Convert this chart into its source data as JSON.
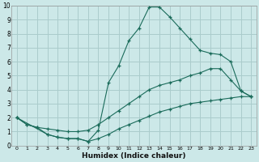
{
  "xlabel": "Humidex (Indice chaleur)",
  "bg_color": "#cce8e8",
  "grid_color": "#aacccc",
  "line_color": "#1a6b5a",
  "xlim": [
    -0.5,
    23.5
  ],
  "ylim": [
    0,
    10
  ],
  "xticks": [
    0,
    1,
    2,
    3,
    4,
    5,
    6,
    7,
    8,
    9,
    10,
    11,
    12,
    13,
    14,
    15,
    16,
    17,
    18,
    19,
    20,
    21,
    22,
    23
  ],
  "yticks": [
    0,
    1,
    2,
    3,
    4,
    5,
    6,
    7,
    8,
    9,
    10
  ],
  "line1_x": [
    0,
    1,
    2,
    3,
    4,
    5,
    6,
    7,
    8,
    9,
    10,
    11,
    12,
    13,
    14,
    15,
    16,
    17,
    18,
    19,
    20,
    21,
    22,
    23
  ],
  "line1_y": [
    2.0,
    1.5,
    1.3,
    0.8,
    0.6,
    0.5,
    0.5,
    0.3,
    0.5,
    0.8,
    1.2,
    1.5,
    1.8,
    2.1,
    2.4,
    2.6,
    2.8,
    3.0,
    3.1,
    3.2,
    3.3,
    3.4,
    3.5,
    3.5
  ],
  "line2_x": [
    0,
    1,
    2,
    3,
    4,
    5,
    6,
    7,
    8,
    9,
    10,
    11,
    12,
    13,
    14,
    15,
    16,
    17,
    18,
    19,
    20,
    21,
    22,
    23
  ],
  "line2_y": [
    2.0,
    1.5,
    1.3,
    1.2,
    1.1,
    1.0,
    1.0,
    1.1,
    1.5,
    2.0,
    2.5,
    3.0,
    3.5,
    4.0,
    4.3,
    4.5,
    4.7,
    5.0,
    5.2,
    5.5,
    5.5,
    4.7,
    3.9,
    3.5
  ],
  "line3_x": [
    0,
    3,
    4,
    5,
    6,
    7,
    8,
    9,
    10,
    11,
    12,
    13,
    14,
    15,
    16,
    17,
    18,
    19,
    20,
    21,
    22,
    23
  ],
  "line3_y": [
    2.0,
    0.8,
    0.6,
    0.5,
    0.5,
    0.3,
    1.1,
    4.5,
    5.7,
    7.5,
    8.4,
    9.9,
    9.9,
    9.2,
    8.4,
    7.6,
    6.8,
    6.6,
    6.5,
    6.0,
    3.9,
    3.5
  ]
}
